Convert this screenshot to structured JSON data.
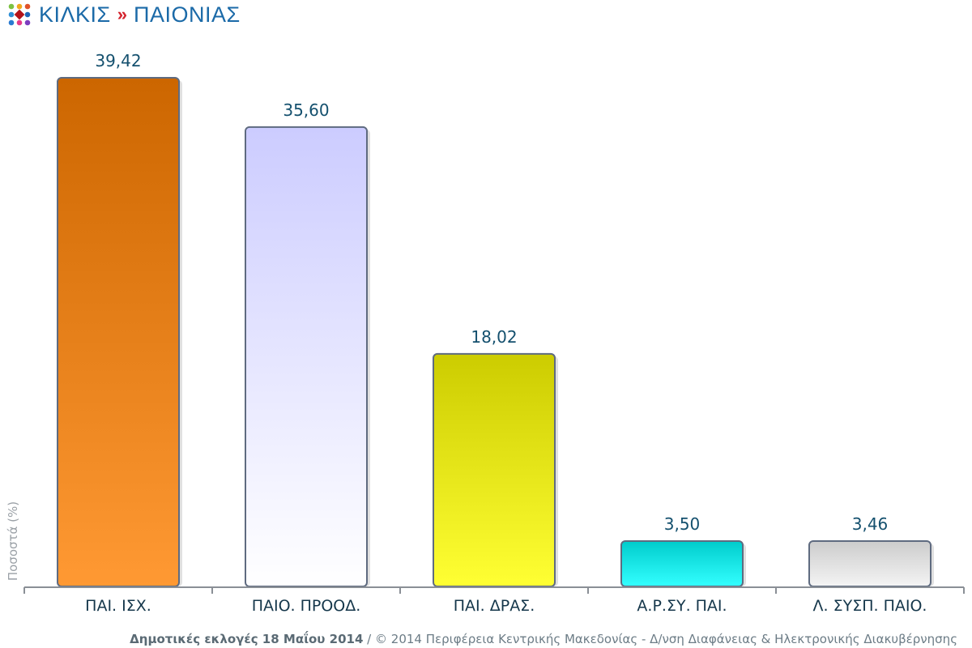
{
  "header": {
    "region": "ΚΙΛΚΙΣ",
    "separator": "»",
    "municipality": "ΠΑΙΟΝΙΑΣ"
  },
  "chart_data": {
    "type": "bar",
    "categories": [
      "ΠΑΙ. ΙΣΧ.",
      "ΠΑΙΟ. ΠΡΟΟΔ.",
      "ΠΑΙ. ΔΡΑΣ.",
      "Α.Ρ.ΣΥ. ΠΑΙ.",
      "Λ. ΣΥΣΠ. ΠΑΙΟ."
    ],
    "values": [
      39.42,
      35.6,
      18.02,
      3.5,
      3.46
    ],
    "value_labels": [
      "39,42",
      "35,60",
      "18,02",
      "3,50",
      "3,46"
    ],
    "ylabel": "Ποσοστά (%)",
    "ylim": [
      0,
      39.42
    ],
    "grid": false,
    "colors": [
      {
        "top": "#cc6600",
        "bottom": "#ff9933"
      },
      {
        "top": "#ccccff",
        "bottom": "#ffffff"
      },
      {
        "top": "#cccc00",
        "bottom": "#ffff33"
      },
      {
        "top": "#00cccc",
        "bottom": "#33ffff"
      },
      {
        "top": "#cccccc",
        "bottom": "#f4f4f4"
      }
    ]
  },
  "footer": {
    "event": "Δημοτικές εκλογές 18 Μαΐου 2014",
    "separator": "/",
    "credit": "© 2014 Περιφέρεια Κεντρικής Μακεδονίας - Δ/νση Διαφάνειας & Ηλεκτρονικής Διακυβέρνησης"
  }
}
